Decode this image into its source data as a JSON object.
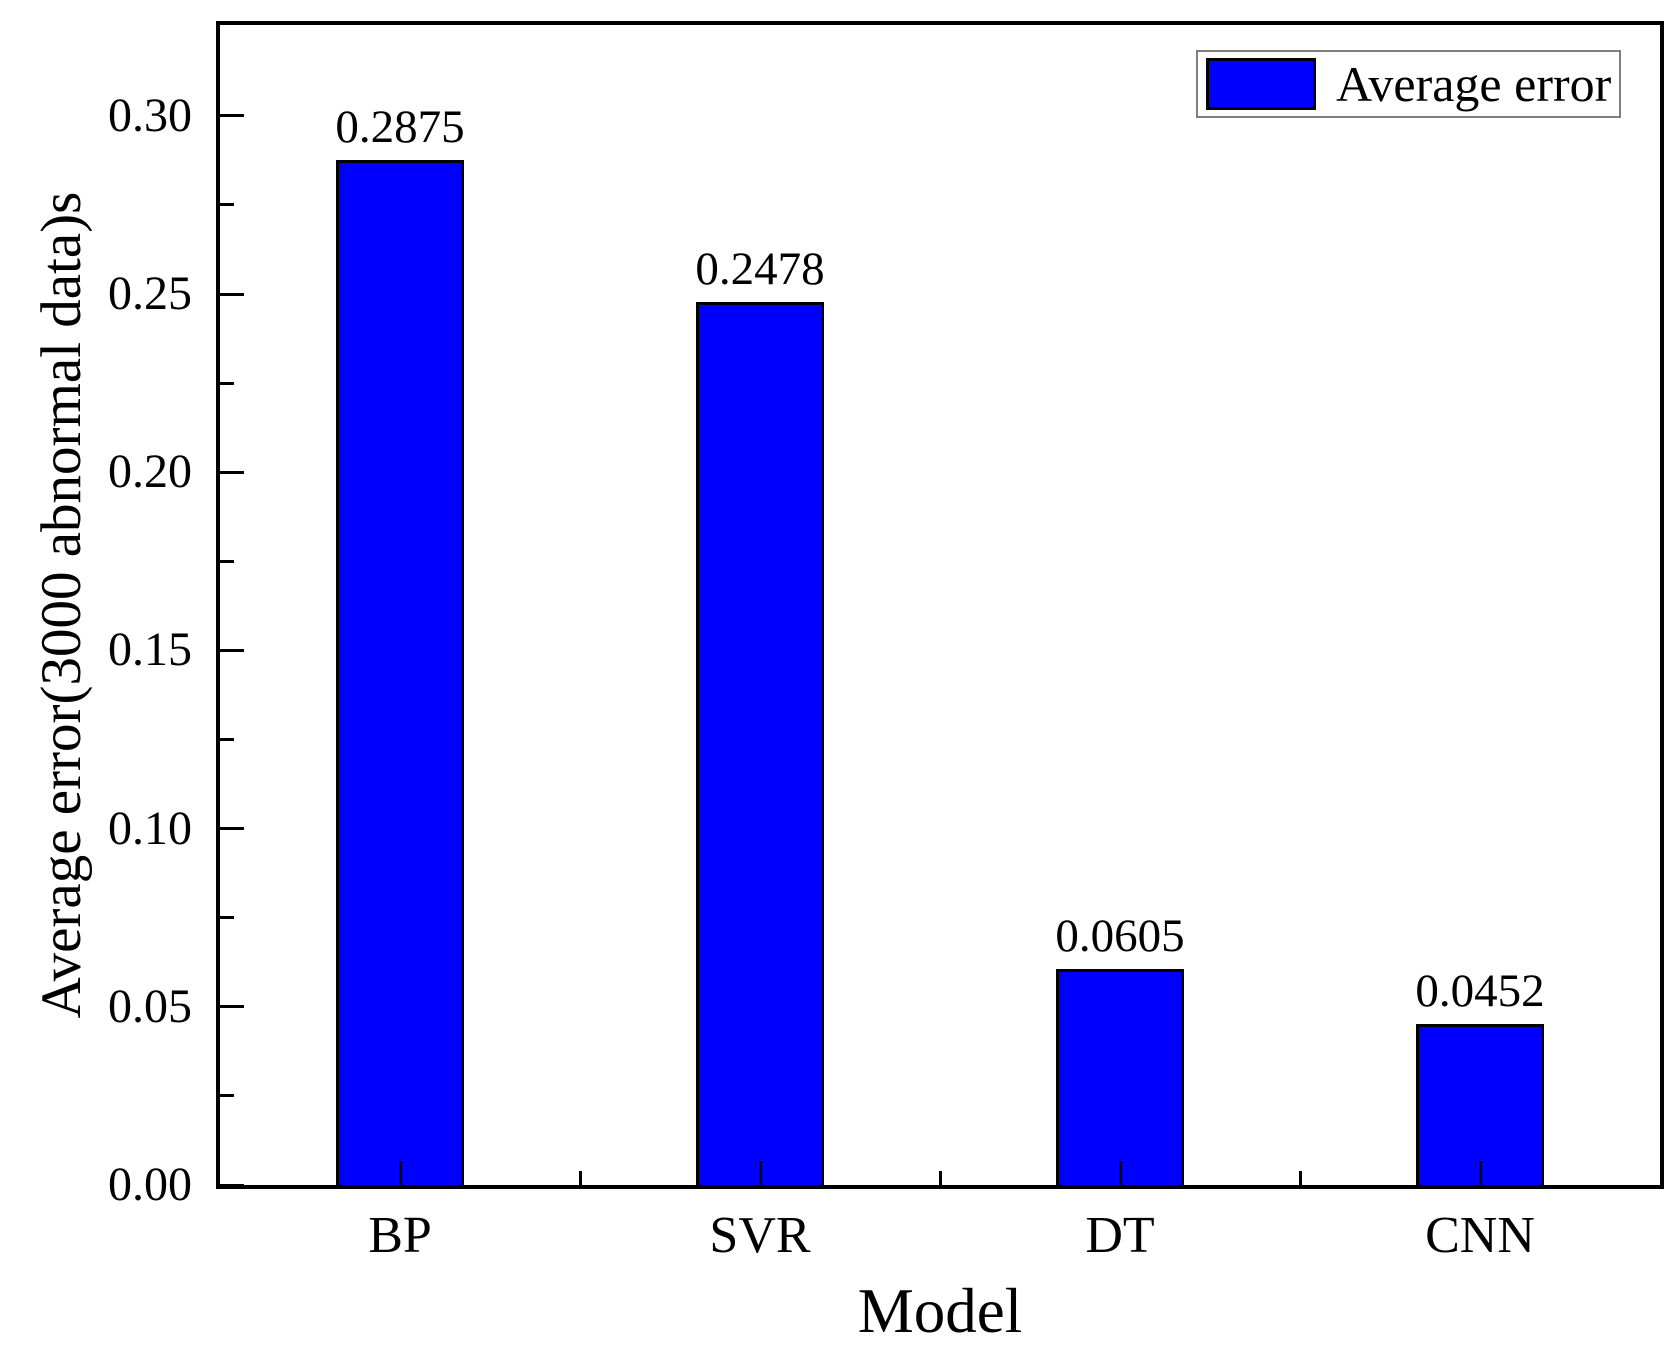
{
  "chart_data": {
    "type": "bar",
    "title": "",
    "xlabel": "Model",
    "ylabel": "Average error(3000 abnormal data)s",
    "categories": [
      "BP",
      "SVR",
      "DT",
      "CNN"
    ],
    "series": [
      {
        "name": "Average error",
        "values": [
          0.2875,
          0.2478,
          0.0605,
          0.0452
        ]
      }
    ],
    "value_labels": [
      "0.2875",
      "0.2478",
      "0.0605",
      "0.0452"
    ],
    "ylim": [
      0,
      0.3255
    ],
    "yticks": {
      "values": [
        0,
        0.05,
        0.1,
        0.15,
        0.2,
        0.25,
        0.3
      ],
      "labels": [
        "0.00",
        "0.05",
        "0.10",
        "0.15",
        "0.20",
        "0.25",
        "0.30"
      ],
      "major_step": 0.05,
      "minor_step": 0.025
    },
    "legend": {
      "label": "Average error",
      "position": "top-right"
    },
    "grid": false,
    "bar_width_fraction": 0.355,
    "colors": {
      "bar_fill": "#0000FF",
      "bar_border": "#000000",
      "frame": "#000000",
      "text": "#000000",
      "legend_border": "#7F7F7F",
      "background": "#FFFFFF"
    }
  }
}
